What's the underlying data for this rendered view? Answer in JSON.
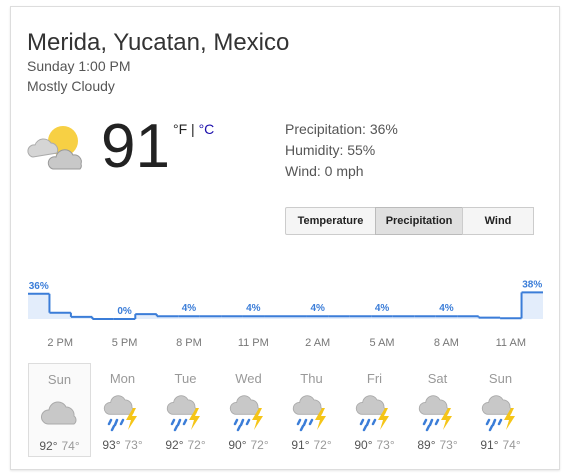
{
  "header": {
    "location": "Merida, Yucatan, Mexico",
    "time": "Sunday 1:00 PM",
    "condition": "Mostly Cloudy"
  },
  "current": {
    "temperature": "91",
    "unit_f": "°F",
    "separator": "|",
    "unit_c": "°C"
  },
  "details": [
    "Precipitation: 36%",
    "Humidity: 55%",
    "Wind: 0 mph"
  ],
  "tabs": [
    "Temperature",
    "Precipitation",
    "Wind"
  ],
  "precipitation": {
    "values": [
      36,
      9,
      3,
      0,
      0,
      7,
      4,
      4,
      4,
      4,
      4,
      4,
      4,
      4,
      4,
      4,
      4,
      4,
      4,
      4,
      4,
      2,
      1,
      38
    ],
    "value_labels": [
      "36%",
      null,
      null,
      null,
      "0%",
      null,
      null,
      "4%",
      null,
      null,
      "4%",
      null,
      null,
      "4%",
      null,
      null,
      "4%",
      null,
      null,
      "4%",
      null,
      null,
      null,
      "38%"
    ],
    "hours": [
      null,
      "2 PM",
      null,
      null,
      "5 PM",
      null,
      null,
      "8 PM",
      null,
      null,
      "11 PM",
      null,
      null,
      "2 AM",
      null,
      null,
      "5 AM",
      null,
      null,
      "8 AM",
      null,
      null,
      "11 AM",
      null
    ]
  },
  "days": [
    {
      "name": "Sun",
      "high": "92°",
      "low": "74°"
    },
    {
      "name": "Mon",
      "high": "93°",
      "low": "73°"
    },
    {
      "name": "Tue",
      "high": "92°",
      "low": "72°"
    },
    {
      "name": "Wed",
      "high": "90°",
      "low": "72°"
    },
    {
      "name": "Thu",
      "high": "91°",
      "low": "72°"
    },
    {
      "name": "Fri",
      "high": "90°",
      "low": "73°"
    },
    {
      "name": "Sat",
      "high": "89°",
      "low": "73°"
    },
    {
      "name": "Sun",
      "high": "91°",
      "low": "74°"
    }
  ]
}
